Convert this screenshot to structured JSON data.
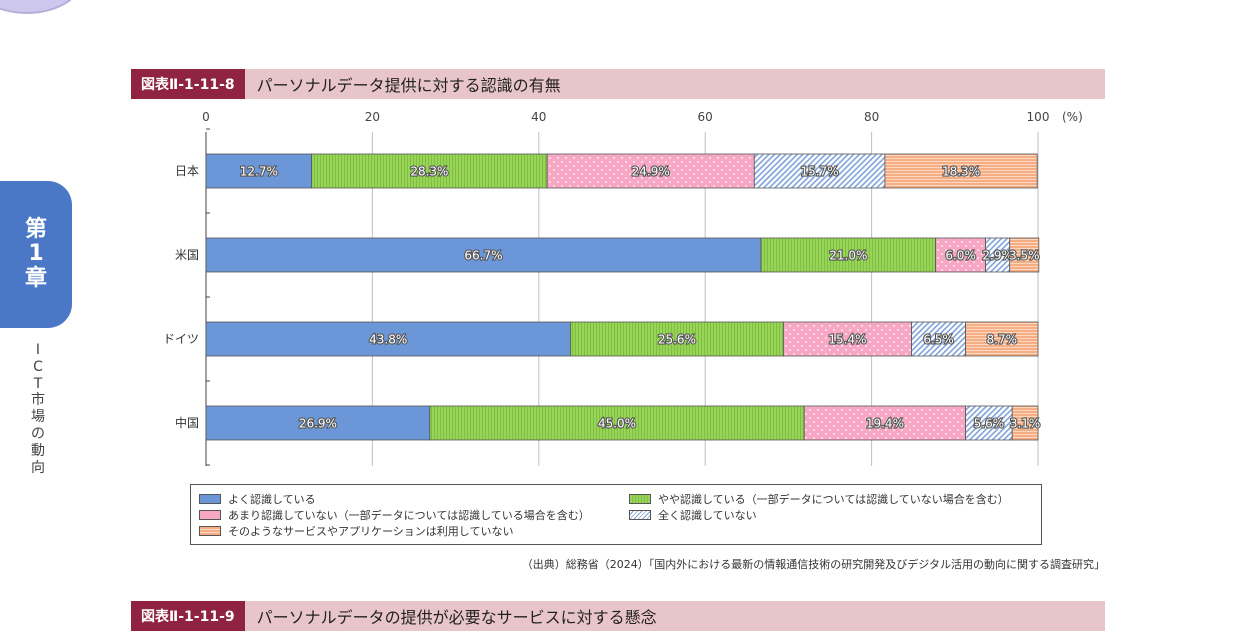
{
  "page": {
    "side_tab": [
      "第",
      "1",
      "章"
    ],
    "side_label": [
      "I",
      "C",
      "T",
      "市",
      "場",
      "の",
      "動",
      "向"
    ]
  },
  "figure1": {
    "badge": "図表Ⅱ-1-11-8",
    "title": "パーソナルデータ提供に対する認識の有無",
    "source": "（出典）総務省（2024）「国内外における最新の情報通信技術の研究開発及びデジタル活用の動向に関する調査研究」"
  },
  "figure2": {
    "badge": "図表Ⅱ-1-11-9",
    "title": "パーソナルデータの提供が必要なサービスに対する懸念"
  },
  "chart_data": {
    "type": "bar",
    "orientation": "horizontal",
    "stacked": true,
    "categories": [
      "日本",
      "米国",
      "ドイツ",
      "中国"
    ],
    "x_ticks": [
      "0",
      "20",
      "40",
      "60",
      "80",
      "100"
    ],
    "x_unit": "(%)",
    "xlim": [
      0,
      100
    ],
    "series": [
      {
        "name": "よく認識している",
        "color": "#6b97d8",
        "values": [
          12.7,
          66.7,
          43.8,
          26.9
        ],
        "labels": [
          "12.7%",
          "66.7%",
          "43.8%",
          "26.9%"
        ]
      },
      {
        "name": "やや認識している（一部データについては認識していない場合を含む）",
        "color": "#99d45a",
        "values": [
          28.3,
          21.0,
          25.6,
          45.0
        ],
        "labels": [
          "28.3%",
          "21.0%",
          "25.6%",
          "45.0%"
        ]
      },
      {
        "name": "あまり認識していない（一部データについては認識している場合を含む）",
        "color": "#f7a7c3",
        "values": [
          24.9,
          6.0,
          15.4,
          19.4
        ],
        "labels": [
          "24.9%",
          "6.0%",
          "15.4%",
          "19.4%"
        ]
      },
      {
        "name": "全く認識していない",
        "color": "#a9c4ea",
        "values": [
          15.7,
          2.9,
          6.5,
          5.6
        ],
        "labels": [
          "15.7%",
          "2.9%",
          "6.5%",
          "5.6%"
        ]
      },
      {
        "name": "そのようなサービスやアプリケーションは利用していない",
        "color": "#f5ad83",
        "values": [
          18.3,
          3.5,
          8.7,
          3.1
        ],
        "labels": [
          "18.3%",
          "3.5%",
          "8.7%",
          "3.1%"
        ]
      }
    ],
    "grid": true,
    "legend_position": "bottom"
  }
}
